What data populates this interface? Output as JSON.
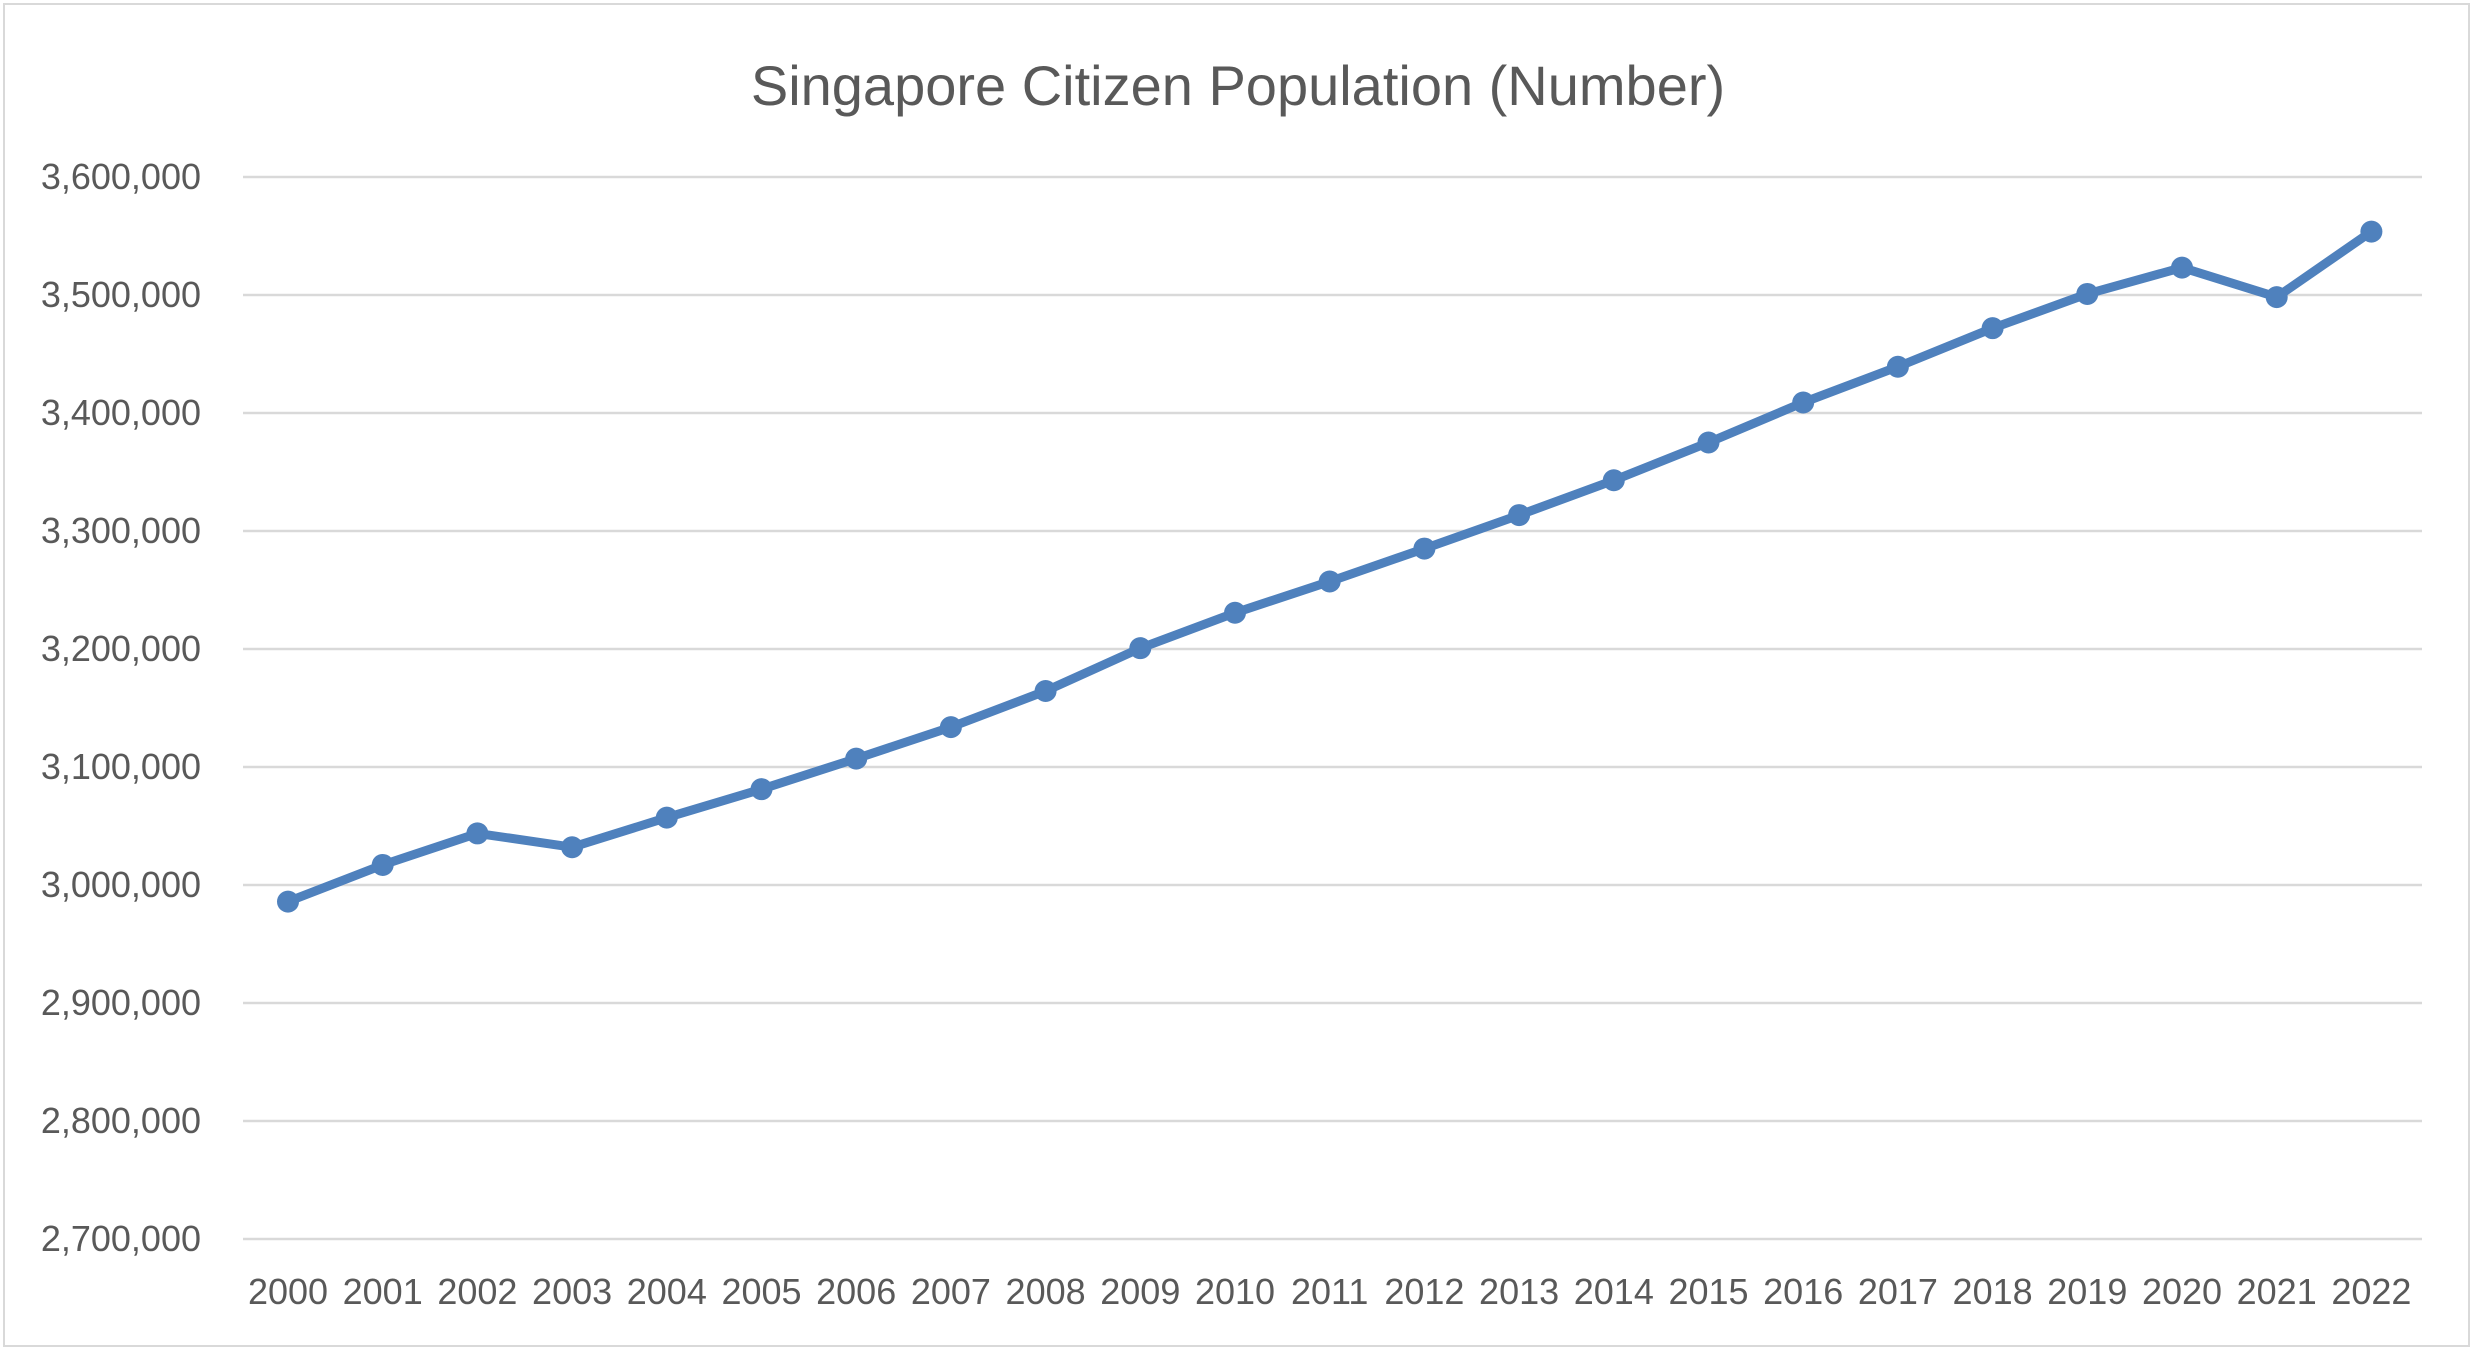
{
  "chart_data": {
    "type": "line",
    "title": "Singapore Citizen Population (Number)",
    "xlabel": "",
    "ylabel": "",
    "categories": [
      "2000",
      "2001",
      "2002",
      "2003",
      "2004",
      "2005",
      "2006",
      "2007",
      "2008",
      "2009",
      "2010",
      "2011",
      "2012",
      "2013",
      "2014",
      "2015",
      "2016",
      "2017",
      "2018",
      "2019",
      "2020",
      "2021",
      "2022"
    ],
    "series": [
      {
        "values": [
          2985900,
          3017000,
          3043700,
          3032000,
          3057100,
          3081200,
          3107100,
          3133800,
          3164400,
          3200700,
          3230700,
          3257200,
          3285100,
          3313500,
          3343000,
          3375000,
          3408900,
          3439200,
          3471900,
          3500900,
          3523200,
          3498200,
          3553700
        ],
        "color": "#4f81bd"
      }
    ],
    "ylim": [
      2700000,
      3600000
    ],
    "ytick_step": 100000,
    "ytick_labels": [
      "2,700,000",
      "2,800,000",
      "2,900,000",
      "3,000,000",
      "3,100,000",
      "3,200,000",
      "3,300,000",
      "3,400,000",
      "3,500,000",
      "3,600,000"
    ],
    "grid": true,
    "legend": "none",
    "markers": true
  }
}
